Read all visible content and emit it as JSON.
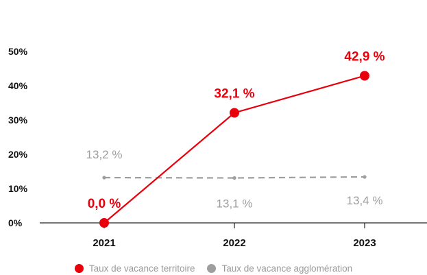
{
  "chart_data": {
    "type": "line",
    "categories": [
      "2021",
      "2022",
      "2023"
    ],
    "ylim": [
      0,
      50
    ],
    "yticks": [
      "0%",
      "10%",
      "20%",
      "30%",
      "40%",
      "50%"
    ],
    "ytick_values": [
      0,
      10,
      20,
      30,
      40,
      50
    ],
    "grid": false,
    "legend_position": "bottom",
    "series": [
      {
        "name": "Taux de vacance territoire",
        "values": [
          0.0,
          32.1,
          42.9
        ],
        "labels": [
          "0,0 %",
          "32,1 %",
          "42,9 %"
        ],
        "color": "#e8000b",
        "style": "solid"
      },
      {
        "name": "Taux de vacance agglomération",
        "values": [
          13.2,
          13.1,
          13.4
        ],
        "labels": [
          "13,2 %",
          "13,1 %",
          "13,4 %"
        ],
        "color": "#9e9e9e",
        "style": "dashed"
      }
    ]
  }
}
